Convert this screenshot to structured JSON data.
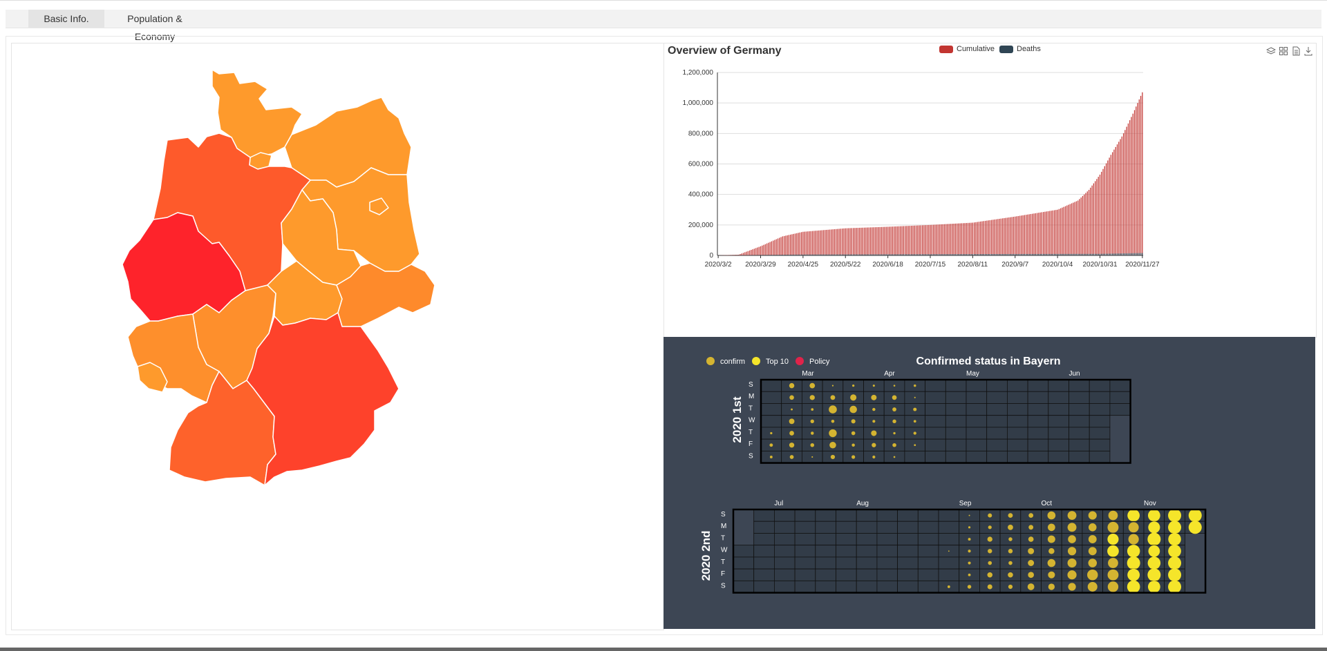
{
  "tabs": [
    {
      "label": "Basic Info."
    },
    {
      "label": "Population & Economy"
    }
  ],
  "map": {
    "name": "Germany states choropleth"
  },
  "overview": {
    "title": "Overview of Germany",
    "legend": [
      {
        "label": "Cumulative",
        "color": "#c23531"
      },
      {
        "label": "Deaths",
        "color": "#2f4554"
      }
    ],
    "tools": [
      "layers-icon",
      "grid-icon",
      "data-view-icon",
      "download-icon"
    ]
  },
  "chart_data": {
    "type": "bar",
    "title": "Overview of Germany",
    "x_tick_labels": [
      "2020/3/2",
      "2020/3/29",
      "2020/4/25",
      "2020/5/22",
      "2020/6/18",
      "2020/7/15",
      "2020/8/11",
      "2020/9/7",
      "2020/10/4",
      "2020/10/31",
      "2020/11/27"
    ],
    "y_tick_labels": [
      "0",
      "200,000",
      "400,000",
      "600,000",
      "800,000",
      "1,000,000",
      "1,200,000"
    ],
    "ylim": [
      0,
      1200000
    ],
    "x_start": "2020/3/2",
    "x_end": "2020/11/27",
    "series": [
      {
        "name": "Cumulative",
        "color": "#c23531",
        "keypoints": [
          [
            "2020/3/2",
            100
          ],
          [
            "2020/3/15",
            5000
          ],
          [
            "2020/3/29",
            60000
          ],
          [
            "2020/4/12",
            125000
          ],
          [
            "2020/4/25",
            155000
          ],
          [
            "2020/5/22",
            178000
          ],
          [
            "2020/6/18",
            188000
          ],
          [
            "2020/7/15",
            200000
          ],
          [
            "2020/8/11",
            215000
          ],
          [
            "2020/9/7",
            255000
          ],
          [
            "2020/10/4",
            300000
          ],
          [
            "2020/10/17",
            360000
          ],
          [
            "2020/10/24",
            430000
          ],
          [
            "2020/10/31",
            530000
          ],
          [
            "2020/11/7",
            660000
          ],
          [
            "2020/11/14",
            780000
          ],
          [
            "2020/11/21",
            930000
          ],
          [
            "2020/11/27",
            1070000
          ]
        ]
      },
      {
        "name": "Deaths",
        "color": "#2f4554",
        "keypoints": [
          [
            "2020/3/2",
            0
          ],
          [
            "2020/4/25",
            6000
          ],
          [
            "2020/9/7",
            9400
          ],
          [
            "2020/10/31",
            10500
          ],
          [
            "2020/11/27",
            16000
          ]
        ]
      }
    ]
  },
  "calendar": {
    "title": "Confirmed status in Bayern",
    "legend": [
      {
        "label": "confirm",
        "color": "#d4b431"
      },
      {
        "label": "Top 10",
        "color": "#f5e52a"
      },
      {
        "label": "Policy",
        "color": "#e0234a"
      }
    ],
    "half1": {
      "label": "2020  1st",
      "months": [
        "Mar",
        "Apr",
        "May",
        "Jun"
      ]
    },
    "half2": {
      "label": "2020  2nd",
      "months": [
        "Jul",
        "Aug",
        "Sep",
        "Oct",
        "Nov"
      ]
    },
    "days": [
      "S",
      "M",
      "T",
      "W",
      "T",
      "F",
      "S"
    ]
  }
}
